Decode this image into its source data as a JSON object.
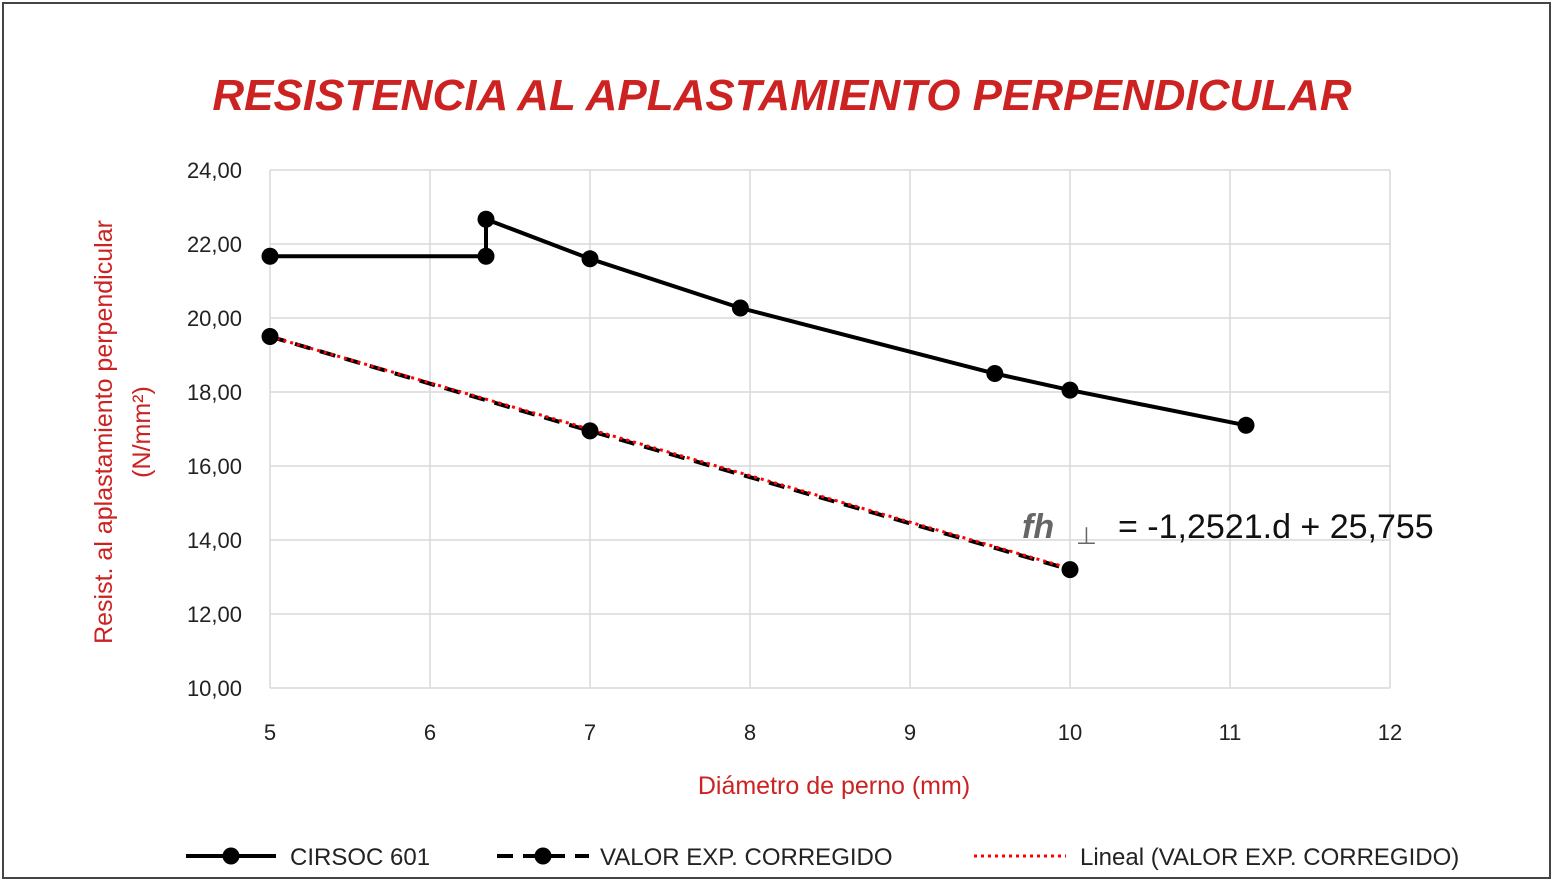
{
  "chart_data": {
    "type": "line",
    "title": "RESISTENCIA AL APLASTAMIENTO PERPENDICULAR",
    "xlabel": "Diámetro de perno (mm)",
    "ylabel": "Resist. al aplastamiento perpendicular",
    "ylabel_unit": "(N/mm²)",
    "xlim": [
      5,
      12
    ],
    "ylim": [
      10,
      24
    ],
    "x_ticks": [
      5,
      6,
      7,
      8,
      9,
      10,
      11,
      12
    ],
    "y_ticks": [
      10,
      12,
      14,
      16,
      18,
      20,
      22,
      24
    ],
    "x_tick_labels": [
      "5",
      "6",
      "7",
      "8",
      "9",
      "10",
      "11",
      "12"
    ],
    "y_tick_labels": [
      "10,00",
      "12,00",
      "14,00",
      "16,00",
      "18,00",
      "20,00",
      "22,00",
      "24,00"
    ],
    "grid": "vertical and horizontal",
    "legend_position": "bottom",
    "series": [
      {
        "name": "CIRSOC 601",
        "style": "solid",
        "color": "#000000",
        "x": [
          5,
          6.35,
          6.35,
          7,
          7.94,
          9.53,
          10,
          11.1
        ],
        "y": [
          21.67,
          21.67,
          22.67,
          21.6,
          20.27,
          18.5,
          18.05,
          17.1
        ]
      },
      {
        "name": "VALOR EXP. CORREGIDO",
        "style": "dashed",
        "color": "#000000",
        "x": [
          5,
          7,
          10
        ],
        "y": [
          19.5,
          16.95,
          13.2
        ]
      },
      {
        "name": "Lineal (VALOR EXP. CORREGIDO)",
        "style": "dotted",
        "color": "#ff0000",
        "x": [
          5,
          10
        ],
        "y": [
          19.5,
          13.23
        ]
      }
    ],
    "annotation": {
      "prefix": "fh",
      "symbol": "⊥",
      "text": "= -1,2521.d + 25,755"
    }
  }
}
